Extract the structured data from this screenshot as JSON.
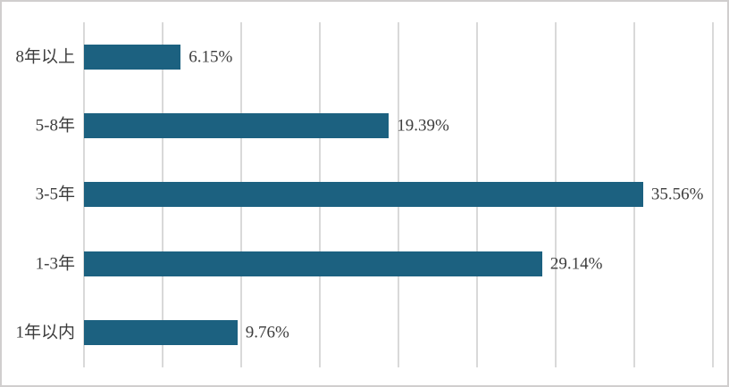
{
  "chart_data": {
    "type": "bar",
    "orientation": "horizontal",
    "title": "",
    "xlabel": "",
    "ylabel": "",
    "categories": [
      "8年以上",
      "5-8年",
      "3-5年",
      "1-3年",
      "1年以内"
    ],
    "values": [
      6.15,
      19.39,
      35.56,
      29.14,
      9.76
    ],
    "value_labels": [
      "6.15%",
      "19.39%",
      "35.56%",
      "29.14%",
      "9.76%"
    ],
    "xlim": [
      0,
      40
    ],
    "gridline_interval": 5,
    "grid": true,
    "legend": false,
    "axis_tick_labels_visible": false,
    "colors": {
      "bar": "#1C6180",
      "gridline": "#D9D9D9",
      "frame_border": "#D0CECE",
      "text": "#3D3D3D",
      "background": "#FFFFFF"
    }
  }
}
